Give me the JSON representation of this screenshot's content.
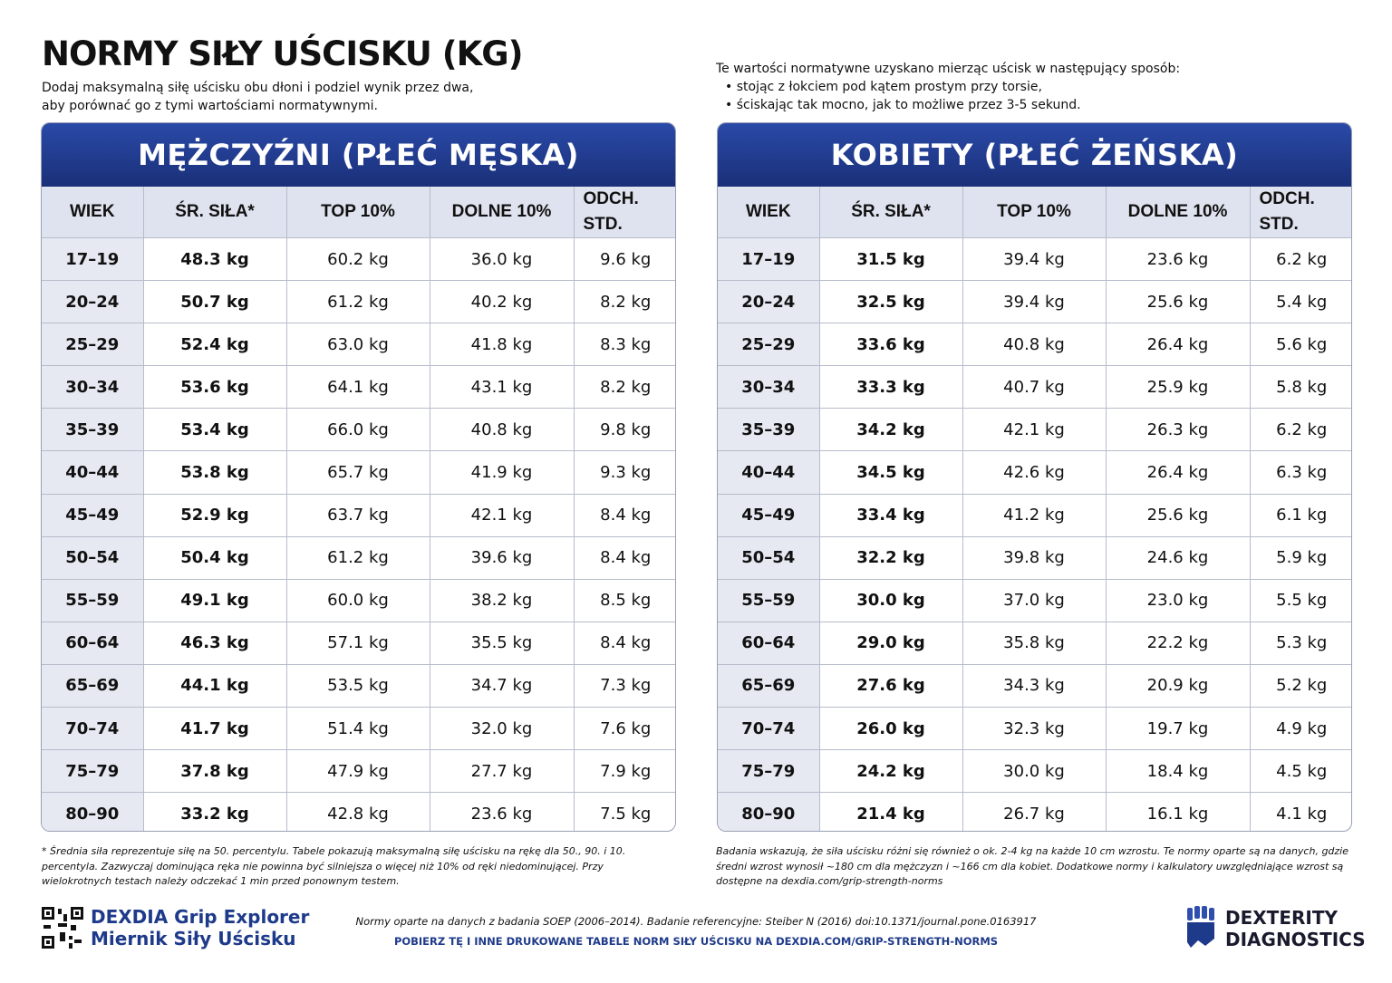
{
  "title": "NORMY SIŁY UŚCISKU (KG)",
  "subtitle": [
    "Dodaj maksymalną siłę uścisku obu dłoni i podziel wynik przez dwa,",
    "aby porównać go z tymi wartościami normatywnymi."
  ],
  "method": {
    "intro": "Te wartości normatywne uzyskano mierząc uścisk w następujący sposób:",
    "items": [
      "stojąc z łokciem pod kątem prostym przy torsie,",
      "ściskając tak mocno, jak to możliwe przez 3-5 sekund."
    ]
  },
  "columns": [
    "WIEK",
    "ŚR. SIŁA*",
    "TOP 10%",
    "DOLNE 10%",
    "ODCH. STD."
  ],
  "tables": [
    {
      "title": "MĘŻCZYŹNI (PŁEĆ MĘSKA)",
      "rows": [
        [
          "17–19",
          "48.3 kg",
          "60.2 kg",
          "36.0 kg",
          "9.6 kg"
        ],
        [
          "20–24",
          "50.7 kg",
          "61.2 kg",
          "40.2 kg",
          "8.2 kg"
        ],
        [
          "25–29",
          "52.4 kg",
          "63.0 kg",
          "41.8 kg",
          "8.3 kg"
        ],
        [
          "30–34",
          "53.6 kg",
          "64.1 kg",
          "43.1 kg",
          "8.2 kg"
        ],
        [
          "35–39",
          "53.4 kg",
          "66.0 kg",
          "40.8 kg",
          "9.8 kg"
        ],
        [
          "40–44",
          "53.8 kg",
          "65.7 kg",
          "41.9 kg",
          "9.3 kg"
        ],
        [
          "45–49",
          "52.9 kg",
          "63.7 kg",
          "42.1 kg",
          "8.4 kg"
        ],
        [
          "50–54",
          "50.4 kg",
          "61.2 kg",
          "39.6 kg",
          "8.4 kg"
        ],
        [
          "55–59",
          "49.1 kg",
          "60.0 kg",
          "38.2 kg",
          "8.5 kg"
        ],
        [
          "60–64",
          "46.3 kg",
          "57.1 kg",
          "35.5 kg",
          "8.4 kg"
        ],
        [
          "65–69",
          "44.1 kg",
          "53.5 kg",
          "34.7 kg",
          "7.3 kg"
        ],
        [
          "70–74",
          "41.7 kg",
          "51.4 kg",
          "32.0 kg",
          "7.6 kg"
        ],
        [
          "75–79",
          "37.8 kg",
          "47.9 kg",
          "27.7 kg",
          "7.9 kg"
        ],
        [
          "80–90",
          "33.2 kg",
          "42.8 kg",
          "23.6 kg",
          "7.5 kg"
        ]
      ]
    },
    {
      "title": "KOBIETY (PŁEĆ ŻEŃSKA)",
      "rows": [
        [
          "17–19",
          "31.5 kg",
          "39.4 kg",
          "23.6 kg",
          "6.2 kg"
        ],
        [
          "20–24",
          "32.5 kg",
          "39.4 kg",
          "25.6 kg",
          "5.4 kg"
        ],
        [
          "25–29",
          "33.6 kg",
          "40.8 kg",
          "26.4 kg",
          "5.6 kg"
        ],
        [
          "30–34",
          "33.3 kg",
          "40.7 kg",
          "25.9 kg",
          "5.8 kg"
        ],
        [
          "35–39",
          "34.2 kg",
          "42.1 kg",
          "26.3 kg",
          "6.2 kg"
        ],
        [
          "40–44",
          "34.5 kg",
          "42.6 kg",
          "26.4 kg",
          "6.3 kg"
        ],
        [
          "45–49",
          "33.4 kg",
          "41.2 kg",
          "25.6 kg",
          "6.1 kg"
        ],
        [
          "50–54",
          "32.2 kg",
          "39.8 kg",
          "24.6 kg",
          "5.9 kg"
        ],
        [
          "55–59",
          "30.0 kg",
          "37.0 kg",
          "23.0 kg",
          "5.5 kg"
        ],
        [
          "60–64",
          "29.0 kg",
          "35.8 kg",
          "22.2 kg",
          "5.3 kg"
        ],
        [
          "65–69",
          "27.6 kg",
          "34.3 kg",
          "20.9 kg",
          "5.2 kg"
        ],
        [
          "70–74",
          "26.0 kg",
          "32.3 kg",
          "19.7 kg",
          "4.9 kg"
        ],
        [
          "75–79",
          "24.2 kg",
          "30.0 kg",
          "18.4 kg",
          "4.5 kg"
        ],
        [
          "80–90",
          "21.4 kg",
          "26.7 kg",
          "16.1 kg",
          "4.1 kg"
        ]
      ]
    }
  ],
  "notes": {
    "left": "* Średnia siła reprezentuje siłę na 50. percentylu. Tabele pokazują maksymalną siłę uścisku na rękę dla 50., 90. i 10. percentyla. Zazwyczaj dominująca ręka nie powinna być silniejsza o więcej niż 10% od ręki niedominującej. Przy wielokrotnych testach należy odczekać 1 min przed ponownym testem.",
    "right": "Badania wskazują, że siła uścisku różni się również o ok. 2-4 kg na każde 10 cm wzrostu. Te normy oparte są na danych, gdzie średni wzrost wynosił ~180 cm dla mężczyzn i ~166 cm dla kobiet. Dodatkowe normy i kalkulatory uwzględniające wzrost są dostępne na dexdia.com/grip-strength-norms"
  },
  "footer": {
    "brand_line1": "DEXDIA Grip Explorer",
    "brand_line2": "Miernik Siły Uścisku",
    "reference": "Normy oparte na danych z badania SOEP (2006–2014). Badanie referencyjne: Steiber N (2016) doi:10.1371/journal.pone.0163917",
    "download": "POBIERZ TĘ I INNE DRUKOWANE TABELE NORM SIŁY UŚCISKU NA DEXDIA.COM/GRIP-STRENGTH-NORMS",
    "logo_line1": "DEXTERITY",
    "logo_line2": "DIAGNOSTICS"
  },
  "colors": {
    "brand_blue": "#1e3a8a",
    "header_gray": "#dfe3ef"
  }
}
